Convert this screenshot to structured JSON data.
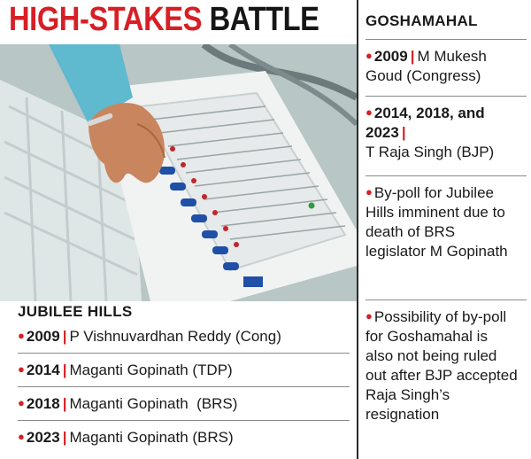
{
  "title": {
    "part1": "HIGH-STAKES",
    "part2": "BATTLE"
  },
  "colors": {
    "accent": "#d71f26",
    "text": "#1a1a1a"
  },
  "photo": {
    "subject": "electronic voting machine with hand pressing buttons"
  },
  "goshamahal": {
    "heading": "GOSHAMAHAL",
    "items": [
      {
        "year": "2009",
        "text": "M Mukesh Goud (Congress)"
      },
      {
        "year": "2014, 2018, and 2023",
        "text": "T Raja Singh (BJP)"
      },
      {
        "text": "By-poll for Jubilee Hills imminent due to death of BRS legislator M Gopinath"
      },
      {
        "text": "Possibility of by-poll for Goshamahal is also not being ruled out after BJP accepted Raja Singh’s resignation"
      }
    ]
  },
  "jubilee_hills": {
    "heading": "JUBILEE HILLS",
    "rows": [
      {
        "year": "2009",
        "text": "P Vishnuvardhan Reddy (Cong)"
      },
      {
        "year": "2014",
        "text": "Maganti Gopinath (TDP)"
      },
      {
        "year": "2018",
        "text": "Maganti Gopinath  (BRS)"
      },
      {
        "year": "2023",
        "text": "Maganti Gopinath (BRS)"
      }
    ]
  }
}
